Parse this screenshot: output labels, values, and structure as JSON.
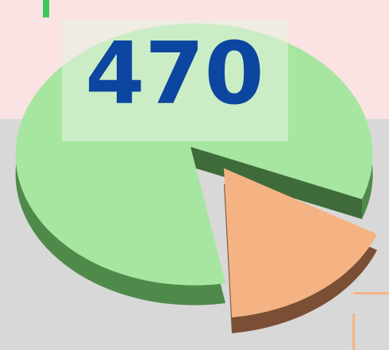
{
  "headline": "470"
}
